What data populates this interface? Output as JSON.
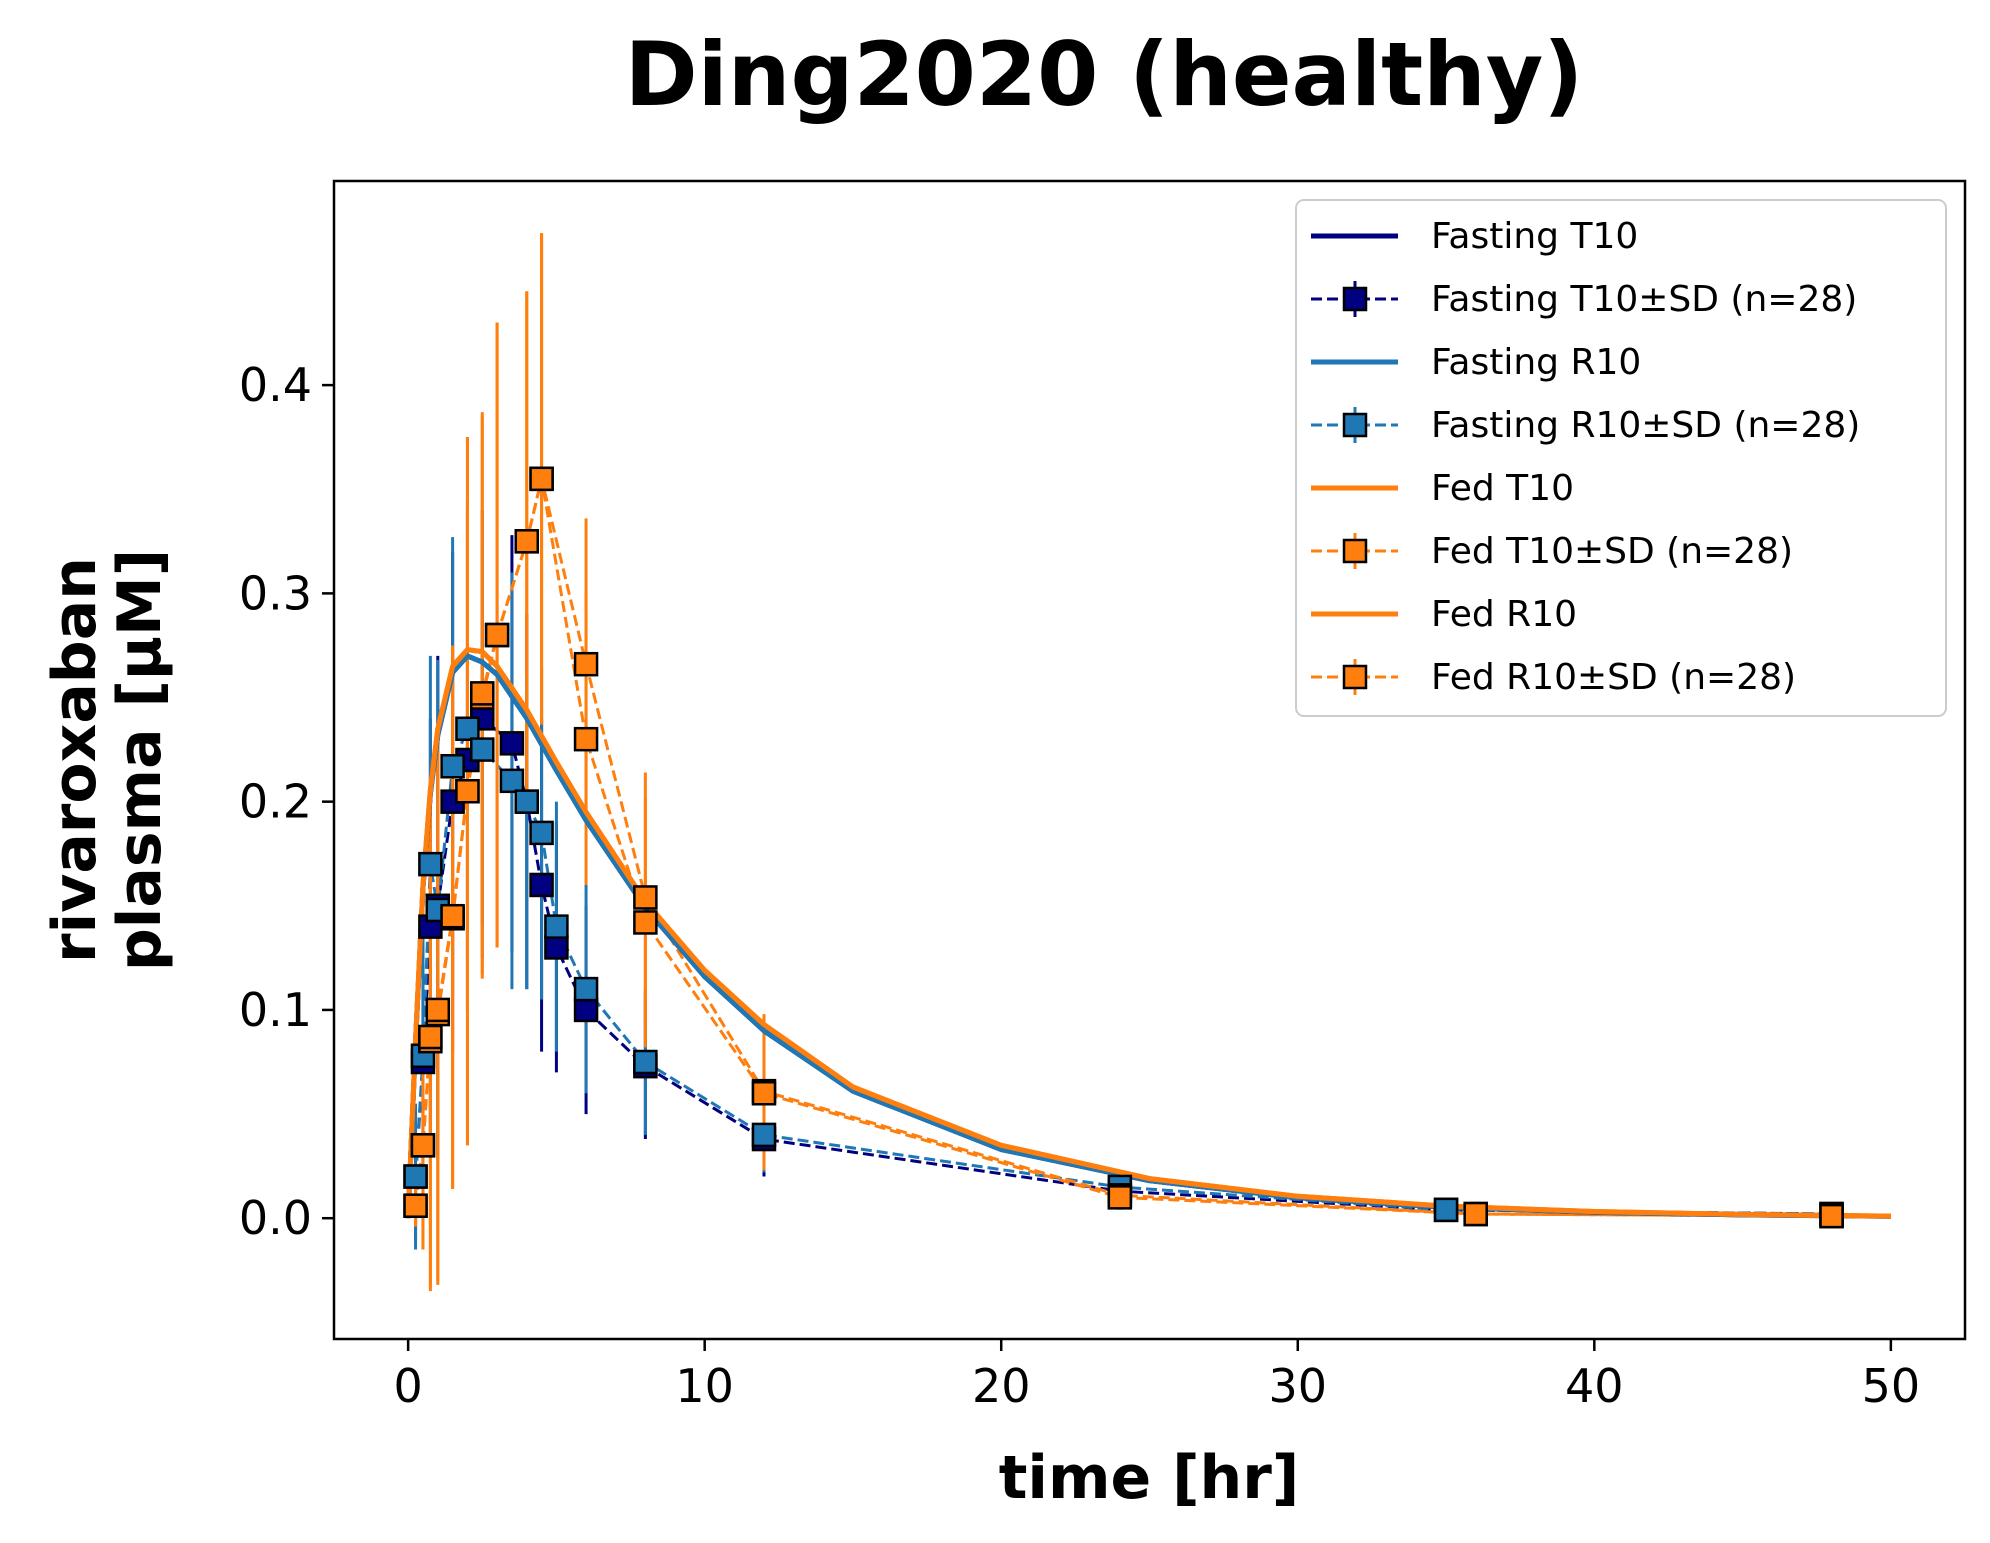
{
  "chart_data": {
    "type": "line",
    "title": "Ding2020 (healthy)",
    "xlabel": "time [hr]",
    "ylabel_lines": [
      "rivaroxaban",
      "plasma [μM]"
    ],
    "xlim": [
      -2.5,
      52.5
    ],
    "ylim": [
      -0.058,
      0.498
    ],
    "xticks": [
      0,
      10,
      20,
      30,
      40,
      50
    ],
    "yticks": [
      0.0,
      0.1,
      0.2,
      0.3,
      0.4
    ],
    "xtick_labels": [
      "0",
      "10",
      "20",
      "30",
      "40",
      "50"
    ],
    "ytick_labels": [
      "0.0",
      "0.1",
      "0.2",
      "0.3",
      "0.4"
    ],
    "grid": false,
    "legend_position": "top-right",
    "colors": {
      "navy": "#000080",
      "blue": "#1f77b4",
      "orange": "#ff7f0e"
    },
    "legend": [
      {
        "label": "Fasting T10",
        "kind": "line",
        "color": "#000080"
      },
      {
        "label": "Fasting T10±SD (n=28)",
        "kind": "marker",
        "color": "#000080"
      },
      {
        "label": "Fasting R10",
        "kind": "line",
        "color": "#1f77b4"
      },
      {
        "label": "Fasting R10±SD (n=28)",
        "kind": "marker",
        "color": "#1f77b4"
      },
      {
        "label": "Fed T10",
        "kind": "line",
        "color": "#ff7f0e"
      },
      {
        "label": "Fed T10±SD (n=28)",
        "kind": "marker",
        "color": "#ff7f0e"
      },
      {
        "label": "Fed R10",
        "kind": "line",
        "color": "#ff7f0e"
      },
      {
        "label": "Fed R10±SD (n=28)",
        "kind": "marker",
        "color": "#ff7f0e"
      }
    ],
    "lines": [
      {
        "name": "Fasting T10",
        "color": "#000080",
        "x": [
          0,
          0.25,
          0.5,
          0.75,
          1,
          1.5,
          2,
          2.5,
          3,
          4,
          5,
          6,
          8,
          10,
          12,
          15,
          20,
          25,
          30,
          35,
          40,
          45,
          50
        ],
        "y": [
          0,
          0.085,
          0.159,
          0.204,
          0.232,
          0.262,
          0.27,
          0.267,
          0.261,
          0.24,
          0.215,
          0.191,
          0.149,
          0.116,
          0.09,
          0.061,
          0.033,
          0.018,
          0.0098,
          0.0053,
          0.0029,
          0.0016,
          0.0009
        ]
      },
      {
        "name": "Fasting R10",
        "color": "#1f77b4",
        "x": [
          0,
          0.25,
          0.5,
          0.75,
          1,
          1.5,
          2,
          2.5,
          3,
          4,
          5,
          6,
          8,
          10,
          12,
          15,
          20,
          25,
          30,
          35,
          40,
          45,
          50
        ],
        "y": [
          0,
          0.085,
          0.159,
          0.204,
          0.232,
          0.262,
          0.27,
          0.267,
          0.261,
          0.24,
          0.215,
          0.191,
          0.149,
          0.116,
          0.09,
          0.061,
          0.033,
          0.018,
          0.0098,
          0.0053,
          0.0029,
          0.0016,
          0.0009
        ]
      },
      {
        "name": "Fed T10",
        "color": "#ff7f0e",
        "x": [
          0,
          0.25,
          0.5,
          0.75,
          1,
          1.5,
          2,
          2.5,
          3,
          4,
          5,
          6,
          8,
          10,
          12,
          15,
          20,
          25,
          30,
          35,
          40,
          45,
          50
        ],
        "y": [
          0,
          0.086,
          0.16,
          0.206,
          0.235,
          0.265,
          0.273,
          0.272,
          0.265,
          0.244,
          0.219,
          0.195,
          0.152,
          0.119,
          0.093,
          0.063,
          0.035,
          0.019,
          0.0105,
          0.0058,
          0.0032,
          0.0018,
          0.001
        ]
      },
      {
        "name": "Fed R10",
        "color": "#ff7f0e",
        "x": [
          0,
          0.25,
          0.5,
          0.75,
          1,
          1.5,
          2,
          2.5,
          3,
          4,
          5,
          6,
          8,
          10,
          12,
          15,
          20,
          25,
          30,
          35,
          40,
          45,
          50
        ],
        "y": [
          0,
          0.086,
          0.16,
          0.206,
          0.235,
          0.265,
          0.273,
          0.272,
          0.265,
          0.244,
          0.219,
          0.195,
          0.152,
          0.119,
          0.093,
          0.063,
          0.035,
          0.019,
          0.0105,
          0.0058,
          0.0032,
          0.0018,
          0.001
        ]
      }
    ],
    "data_series": [
      {
        "name": "Fasting T10±SD (n=28)",
        "color": "#000080",
        "x": [
          0.25,
          0.5,
          0.75,
          1.0,
          1.5,
          2.0,
          2.5,
          3.5,
          4.0,
          4.5,
          5.0,
          6.0,
          8.0,
          12.0,
          24.0,
          35.0,
          48.0
        ],
        "y": [
          0.02,
          0.075,
          0.14,
          0.15,
          0.2,
          0.22,
          0.24,
          0.228,
          0.2,
          0.16,
          0.13,
          0.1,
          0.073,
          0.038,
          0.013,
          0.004,
          0.002
        ],
        "sd": [
          0.03,
          0.06,
          0.1,
          0.12,
          0.12,
          0.12,
          0.1,
          0.1,
          0.09,
          0.08,
          0.06,
          0.05,
          0.035,
          0.018,
          0.007,
          0.002,
          0.001
        ]
      },
      {
        "name": "Fasting R10±SD (n=28)",
        "color": "#1f77b4",
        "x": [
          0.25,
          0.5,
          0.75,
          1.0,
          1.5,
          2.0,
          2.5,
          3.5,
          4.0,
          4.5,
          5.0,
          6.0,
          8.0,
          12.0,
          24.0,
          35.0,
          48.0
        ],
        "y": [
          0.02,
          0.078,
          0.17,
          0.148,
          0.217,
          0.235,
          0.225,
          0.21,
          0.2,
          0.185,
          0.14,
          0.11,
          0.075,
          0.04,
          0.015,
          0.004,
          0.002
        ],
        "sd": [
          0.035,
          0.06,
          0.1,
          0.12,
          0.11,
          0.11,
          0.1,
          0.1,
          0.09,
          0.08,
          0.06,
          0.05,
          0.035,
          0.018,
          0.007,
          0.002,
          0.001
        ]
      },
      {
        "name": "Fed T10±SD (n=28)",
        "color": "#ff7f0e",
        "x": [
          0.25,
          0.5,
          0.75,
          1.0,
          1.5,
          2.0,
          2.5,
          3.0,
          4.0,
          4.5,
          6.0,
          8.0,
          12.0,
          24.0,
          36.0,
          48.0
        ],
        "y": [
          0.006,
          0.035,
          0.085,
          0.098,
          0.144,
          0.205,
          0.25,
          0.28,
          0.325,
          0.355,
          0.266,
          0.154,
          0.061,
          0.011,
          0.002,
          0.001
        ],
        "sd": [
          0.01,
          0.05,
          0.12,
          0.13,
          0.13,
          0.17,
          0.135,
          0.15,
          0.12,
          0.118,
          0.07,
          0.06,
          0.037,
          0.006,
          0.001,
          0.001
        ]
      },
      {
        "name": "Fed R10±SD (n=28)",
        "color": "#ff7f0e",
        "x": [
          0.25,
          0.5,
          0.75,
          1.0,
          1.5,
          2.0,
          2.5,
          3.0,
          4.0,
          4.5,
          6.0,
          8.0,
          12.0,
          24.0,
          36.0,
          48.0
        ],
        "y": [
          0.006,
          0.035,
          0.087,
          0.1,
          0.145,
          0.205,
          0.252,
          0.28,
          0.325,
          0.355,
          0.23,
          0.142,
          0.06,
          0.01,
          0.002,
          0.001
        ],
        "sd": [
          0.01,
          0.05,
          0.12,
          0.13,
          0.13,
          0.17,
          0.135,
          0.15,
          0.12,
          0.118,
          0.07,
          0.06,
          0.037,
          0.006,
          0.001,
          0.001
        ]
      }
    ]
  }
}
